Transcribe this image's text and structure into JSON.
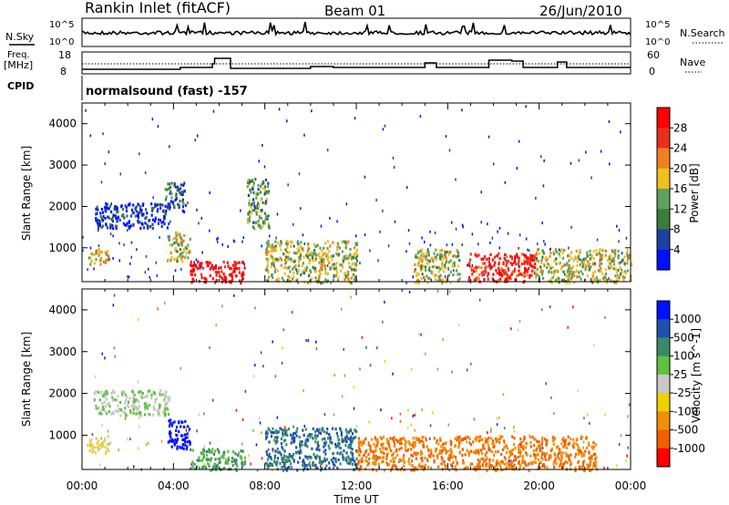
{
  "header": {
    "title": "Rankin Inlet (fitACF)",
    "beam": "Beam 01",
    "date": "26/Jun/2010"
  },
  "top_panels": {
    "nsky_label": "N.Sky",
    "nsky_ticks": [
      "10^5",
      "10^0"
    ],
    "nsearch_label": "N.Search",
    "freq_label": "Freq.",
    "freq_unit": "[MHz]",
    "freq_ticks": [
      "18",
      "8"
    ],
    "nave_label": "Nave",
    "nave_ticks": [
      "60",
      "0"
    ],
    "cpid_label": "CPID",
    "cpid_text": "normalsound (fast) -157"
  },
  "chart_data": [
    {
      "type": "heatmap",
      "title": "",
      "xlabel": "Time UT",
      "ylabel": "Slant Range [km]",
      "x_ticks": [
        "00:00",
        "04:00",
        "08:00",
        "12:00",
        "16:00",
        "20:00",
        "00:00"
      ],
      "y_ticks": [
        "4000",
        "3000",
        "2000",
        "1000"
      ],
      "ylim": [
        180,
        4500
      ],
      "colorbar": {
        "label": "Power [dB]",
        "ticks": [
          "28",
          "24",
          "20",
          "16",
          "12",
          "8",
          "4"
        ],
        "colors": [
          "#ff0000",
          "#e8301c",
          "#f08020",
          "#f0c020",
          "#60a060",
          "#3a7d3a",
          "#2040a0",
          "#0010ff"
        ]
      },
      "regions": [
        {
          "t": [
            0.2,
            1.2
          ],
          "r": [
            600,
            1000
          ],
          "level": "16-20 dB"
        },
        {
          "t": [
            0.5,
            3.8
          ],
          "r": [
            1500,
            2100
          ],
          "level": "4-8 dB"
        },
        {
          "t": [
            3.6,
            4.5
          ],
          "r": [
            1900,
            2600
          ],
          "level": "4-12 dB"
        },
        {
          "t": [
            3.7,
            4.7
          ],
          "r": [
            700,
            1400
          ],
          "level": "8-16 dB"
        },
        {
          "t": [
            4.7,
            7.1
          ],
          "r": [
            180,
            700
          ],
          "level": "24-30 dB"
        },
        {
          "t": [
            7.2,
            8.2
          ],
          "r": [
            1500,
            2700
          ],
          "level": "4-12 dB"
        },
        {
          "t": [
            8.0,
            12.0
          ],
          "r": [
            180,
            1200
          ],
          "level": "8-16 dB"
        },
        {
          "t": [
            14.5,
            16.5
          ],
          "r": [
            180,
            1000
          ],
          "level": "8-16 dB"
        },
        {
          "t": [
            16.8,
            19.8
          ],
          "r": [
            180,
            900
          ],
          "level": "20-28 dB"
        },
        {
          "t": [
            19.8,
            24.0
          ],
          "r": [
            180,
            1000
          ],
          "level": "8-16 dB"
        }
      ]
    },
    {
      "type": "heatmap",
      "title": "",
      "xlabel": "Time UT",
      "ylabel": "Slant Range [km]",
      "x_ticks": [
        "00:00",
        "04:00",
        "08:00",
        "12:00",
        "16:00",
        "20:00",
        "00:00"
      ],
      "y_ticks": [
        "4000",
        "3000",
        "2000",
        "1000"
      ],
      "ylim": [
        180,
        4500
      ],
      "colorbar": {
        "label": "Velocity [m s^-1]",
        "ticks": [
          "1000",
          "500",
          "100",
          "25",
          "-25",
          "-100",
          "-500",
          "-1000"
        ],
        "colors": [
          "#0010ff",
          "#2050b0",
          "#3a8a6a",
          "#60c040",
          "#c8c8c8",
          "#f0d000",
          "#f09000",
          "#f06000",
          "#ff0000"
        ]
      },
      "regions": [
        {
          "t": [
            0.2,
            1.2
          ],
          "r": [
            600,
            1000
          ],
          "level": "-100 to -500"
        },
        {
          "t": [
            0.5,
            3.8
          ],
          "r": [
            1500,
            2100
          ],
          "level": "-25 to 25"
        },
        {
          "t": [
            3.7,
            4.7
          ],
          "r": [
            700,
            1400
          ],
          "level": "500 to 1000"
        },
        {
          "t": [
            4.7,
            7.1
          ],
          "r": [
            180,
            700
          ],
          "level": "25 to 100"
        },
        {
          "t": [
            8.0,
            12.0
          ],
          "r": [
            180,
            1200
          ],
          "level": "100 to 500"
        },
        {
          "t": [
            12.0,
            16.0
          ],
          "r": [
            180,
            1000
          ],
          "level": "-100 to -500"
        },
        {
          "t": [
            16.0,
            22.5
          ],
          "r": [
            180,
            1000
          ],
          "level": "-100 to -500"
        }
      ]
    }
  ],
  "colors": {
    "frame": "#000000",
    "background": "#ffffff"
  }
}
